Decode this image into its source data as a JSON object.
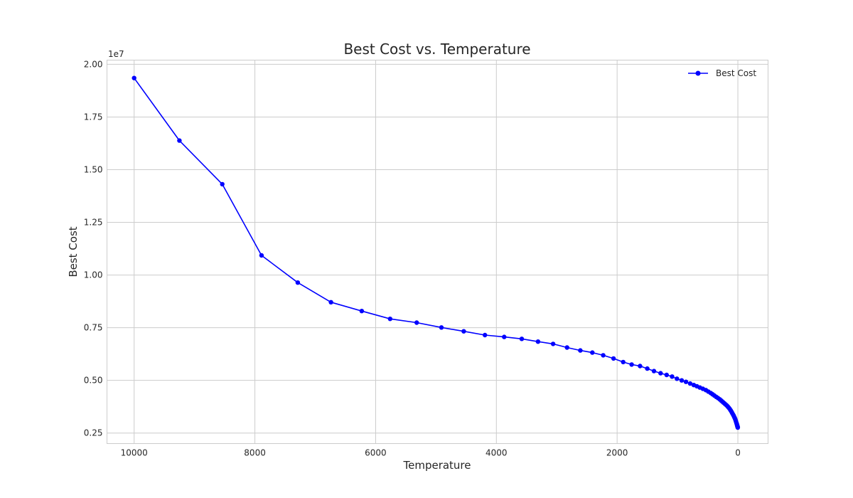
{
  "chart_data": {
    "type": "line",
    "title": "Best Cost vs. Temperature",
    "xlabel": "Temperature",
    "ylabel": "Best Cost",
    "y_offset_label": "1e7",
    "x_inverted": true,
    "xlim": [
      10450,
      -500
    ],
    "ylim": [
      0.2,
      2.02
    ],
    "x_ticks": [
      10000,
      8000,
      6000,
      4000,
      2000,
      0
    ],
    "x_tick_labels": [
      "10000",
      "8000",
      "6000",
      "4000",
      "2000",
      "0"
    ],
    "y_ticks": [
      0.25,
      0.5,
      0.75,
      1.0,
      1.25,
      1.5,
      1.75,
      2.0
    ],
    "y_tick_labels": [
      "0.25",
      "0.50",
      "0.75",
      "1.00",
      "1.25",
      "1.50",
      "1.75",
      "2.00"
    ],
    "grid": true,
    "legend_position": "top-right",
    "series": [
      {
        "name": "Best Cost",
        "color": "#0000ff",
        "marker": "circle",
        "x": [
          10000,
          9250,
          8540,
          7890,
          7290,
          6740,
          6230,
          5760,
          5320,
          4910,
          4540,
          4190,
          3870,
          3580,
          3310,
          3060,
          2830,
          2610,
          2410,
          2230,
          2060,
          1900,
          1760,
          1620,
          1500,
          1390,
          1280,
          1180,
          1090,
          1010,
          930,
          860,
          790,
          730,
          680,
          630,
          580,
          530,
          490,
          450,
          420,
          390,
          360,
          330,
          300,
          280,
          260,
          240,
          220,
          200,
          180,
          165,
          150,
          135,
          120,
          108,
          96,
          85,
          75,
          66,
          58,
          50,
          43,
          37,
          31,
          26,
          21,
          17,
          13,
          10,
          7,
          5,
          3,
          1
        ],
        "y": [
          1.935,
          1.638,
          1.431,
          1.093,
          0.964,
          0.871,
          0.829,
          0.792,
          0.774,
          0.751,
          0.733,
          0.715,
          0.706,
          0.697,
          0.684,
          0.673,
          0.656,
          0.642,
          0.632,
          0.619,
          0.604,
          0.587,
          0.575,
          0.568,
          0.556,
          0.544,
          0.534,
          0.526,
          0.518,
          0.508,
          0.5,
          0.493,
          0.485,
          0.478,
          0.472,
          0.466,
          0.46,
          0.454,
          0.447,
          0.44,
          0.434,
          0.428,
          0.422,
          0.416,
          0.41,
          0.405,
          0.4,
          0.395,
          0.39,
          0.385,
          0.38,
          0.375,
          0.37,
          0.364,
          0.358,
          0.352,
          0.346,
          0.34,
          0.335,
          0.33,
          0.325,
          0.32,
          0.315,
          0.31,
          0.305,
          0.3,
          0.296,
          0.292,
          0.288,
          0.285,
          0.282,
          0.28,
          0.278,
          0.276
        ]
      }
    ]
  }
}
